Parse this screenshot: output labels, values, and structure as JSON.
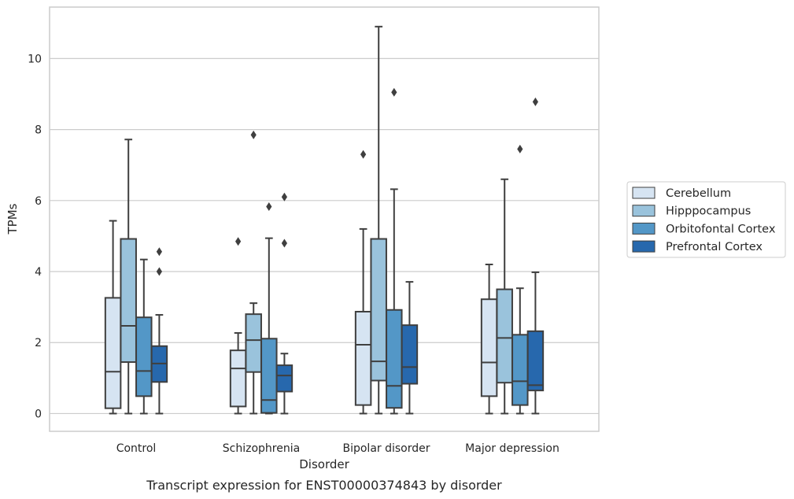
{
  "chart_data": {
    "type": "box",
    "title": "",
    "caption": "Transcript expression for ENST00000374843 by disorder",
    "xlabel": "Disorder",
    "ylabel": "TPMs",
    "ylim": [
      -0.5,
      11.45
    ],
    "yticks": [
      0,
      2,
      4,
      6,
      8,
      10
    ],
    "grid": true,
    "legend_position": "right",
    "categories": [
      "Control",
      "Schizophrenia",
      "Bipolar disorder",
      "Major depression"
    ],
    "series": [
      {
        "name": "Cerebellum",
        "color": "#d6e4f2",
        "boxes": [
          {
            "whisker_low": 0.0,
            "q1": 0.15,
            "median": 1.18,
            "q3": 3.26,
            "whisker_high": 5.43,
            "outliers": []
          },
          {
            "whisker_low": 0.0,
            "q1": 0.2,
            "median": 1.27,
            "q3": 1.78,
            "whisker_high": 2.27,
            "outliers": [
              4.85
            ]
          },
          {
            "whisker_low": 0.0,
            "q1": 0.24,
            "median": 1.94,
            "q3": 2.87,
            "whisker_high": 5.2,
            "outliers": [
              7.3
            ]
          },
          {
            "whisker_low": 0.0,
            "q1": 0.49,
            "median": 1.44,
            "q3": 3.22,
            "whisker_high": 4.2,
            "outliers": []
          }
        ]
      },
      {
        "name": "Hipppocampus",
        "color": "#9ac3dc",
        "boxes": [
          {
            "whisker_low": 0.0,
            "q1": 1.45,
            "median": 2.47,
            "q3": 4.92,
            "whisker_high": 7.72,
            "outliers": []
          },
          {
            "whisker_low": 0.0,
            "q1": 1.17,
            "median": 2.07,
            "q3": 2.8,
            "whisker_high": 3.11,
            "outliers": [
              7.85
            ]
          },
          {
            "whisker_low": 0.0,
            "q1": 0.93,
            "median": 1.47,
            "q3": 4.92,
            "whisker_high": 10.9,
            "outliers": []
          },
          {
            "whisker_low": 0.0,
            "q1": 0.87,
            "median": 2.13,
            "q3": 3.5,
            "whisker_high": 6.6,
            "outliers": []
          }
        ]
      },
      {
        "name": "Orbitofontal Cortex",
        "color": "#5397c7",
        "boxes": [
          {
            "whisker_low": 0.0,
            "q1": 0.49,
            "median": 1.2,
            "q3": 2.71,
            "whisker_high": 4.34,
            "outliers": []
          },
          {
            "whisker_low": 0.0,
            "q1": 0.02,
            "median": 0.38,
            "q3": 2.11,
            "whisker_high": 4.94,
            "outliers": [
              5.83
            ]
          },
          {
            "whisker_low": 0.0,
            "q1": 0.16,
            "median": 0.78,
            "q3": 2.92,
            "whisker_high": 6.32,
            "outliers": [
              9.05
            ]
          },
          {
            "whisker_low": 0.0,
            "q1": 0.24,
            "median": 0.91,
            "q3": 2.22,
            "whisker_high": 3.53,
            "outliers": [
              7.45
            ]
          }
        ]
      },
      {
        "name": "Prefrontal Cortex",
        "color": "#2768ad",
        "boxes": [
          {
            "whisker_low": 0.0,
            "q1": 0.89,
            "median": 1.41,
            "q3": 1.9,
            "whisker_high": 2.78,
            "outliers": [
              4.0,
              4.56
            ]
          },
          {
            "whisker_low": 0.0,
            "q1": 0.62,
            "median": 1.07,
            "q3": 1.36,
            "whisker_high": 1.69,
            "outliers": [
              4.8,
              6.1
            ]
          },
          {
            "whisker_low": 0.0,
            "q1": 0.84,
            "median": 1.31,
            "q3": 2.49,
            "whisker_high": 3.71,
            "outliers": []
          },
          {
            "whisker_low": 0.0,
            "q1": 0.65,
            "median": 0.8,
            "q3": 2.32,
            "whisker_high": 3.98,
            "outliers": [
              8.78
            ]
          }
        ]
      }
    ]
  },
  "colors": {
    "edge": "#3f3f3f",
    "grid": "#cccccc",
    "frame": "#cccccc",
    "text": "#262626"
  }
}
